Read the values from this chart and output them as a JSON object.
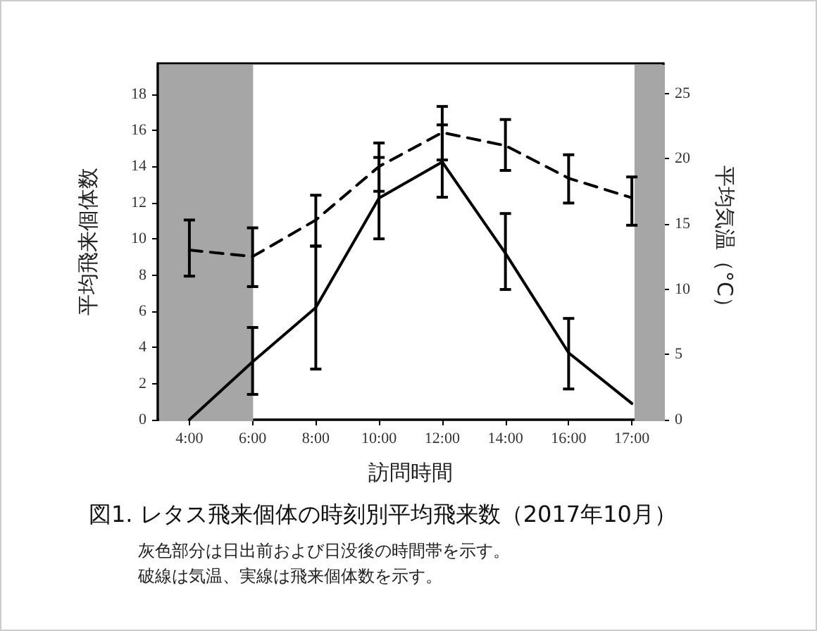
{
  "chart_data": {
    "type": "line",
    "title": "図1. レタス飛来個体の時刻別平均飛来数（2017年10月）",
    "xlabel": "訪問時間",
    "ylabel": "平均飛来個体数",
    "y2label": "平均気温（°C）",
    "annotations": [
      "灰色部分は日出前および日没後の時間帯を示す。",
      "破線は気温、実線は飛来個体数を示す。"
    ],
    "categories": [
      "4:00",
      "6:00",
      "8:00",
      "10:00",
      "12:00",
      "14:00",
      "16:00",
      "17:00"
    ],
    "series": [
      {
        "color": "#000000",
        "line_style": "solid",
        "values": [
          0,
          3.2,
          6.2,
          12.25,
          14.25,
          9.2,
          3.7,
          0.9
        ],
        "errors": [
          null,
          [
            1.4,
            5.1
          ],
          [
            2.8,
            9.6
          ],
          [
            10.0,
            14.5
          ],
          [
            12.3,
            16.3
          ],
          [
            7.2,
            11.4
          ],
          [
            1.7,
            5.6
          ],
          null
        ]
      },
      {
        "color": "#000000",
        "line_style": "dashed",
        "axis": "y2",
        "values": [
          13.0,
          12.5,
          15.3,
          19.4,
          22.0,
          21.0,
          18.5,
          17.0
        ],
        "errors": [
          [
            11.0,
            15.3
          ],
          [
            10.2,
            14.7
          ],
          [
            13.3,
            17.2
          ],
          [
            17.5,
            21.2
          ],
          [
            19.9,
            24.0
          ],
          [
            19.1,
            23.0
          ],
          [
            16.6,
            20.3
          ],
          [
            14.9,
            18.6
          ]
        ]
      }
    ],
    "ylim": [
      0,
      19.7
    ],
    "yticks": [
      0,
      2,
      4,
      6,
      8,
      10,
      12,
      14,
      16,
      18
    ],
    "y2lim": [
      0,
      27.3
    ],
    "y2ticks": [
      0,
      5,
      10,
      15,
      20,
      25
    ],
    "bands": [
      {
        "axis": "x",
        "from": "4:00",
        "to": "6:00",
        "color": "#a6a6a6"
      },
      {
        "axis": "x",
        "from": "17:00",
        "to": "17:00",
        "color": "#a6a6a6"
      }
    ],
    "marker": "none",
    "grid": false
  }
}
